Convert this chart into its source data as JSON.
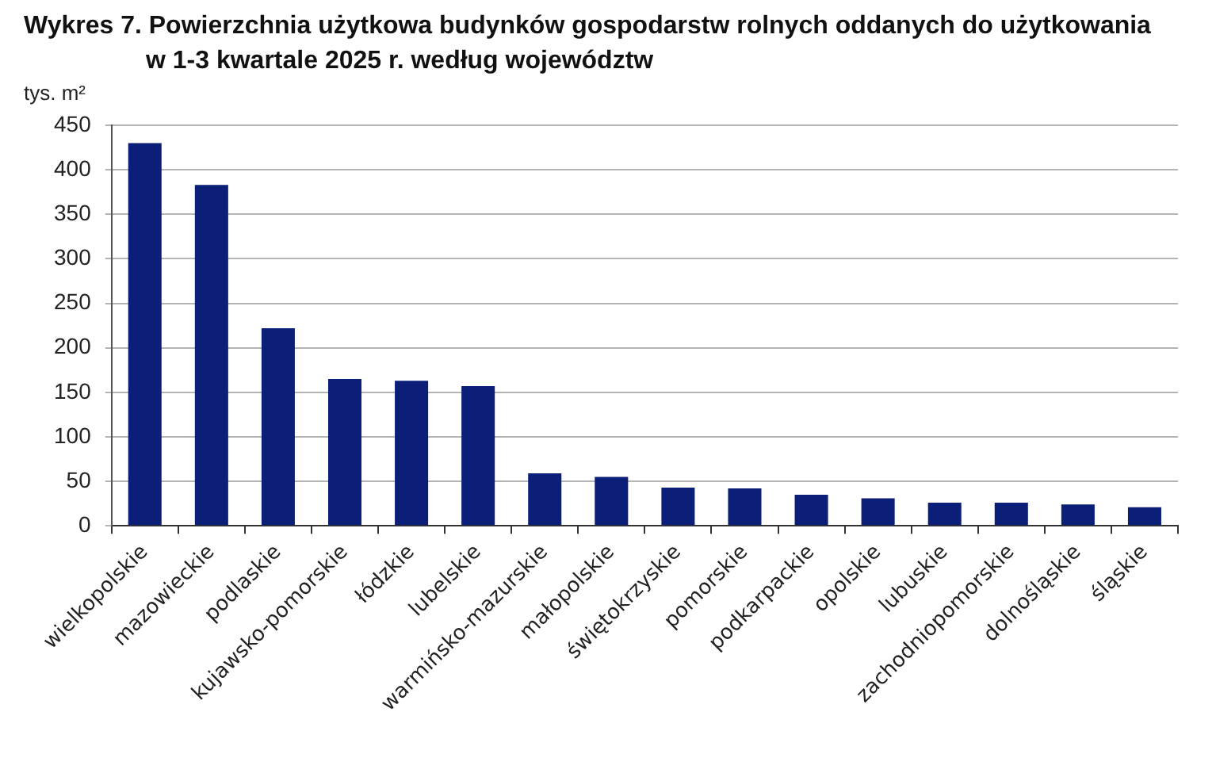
{
  "chart_data": {
    "type": "bar",
    "title": "Wykres 7. Powierzchnia użytkowa budynków gospodarstw rolnych oddanych do użytkowania w 1-3 kwartale 2025 r. według województw",
    "ylabel": "tys. m²",
    "categories": [
      "wielkopolskie",
      "mazowieckie",
      "podlaskie",
      "kujawsko-pomorskie",
      "łódzkie",
      "lubelskie",
      "warmińsko-mazurskie",
      "małopolskie",
      "świętokrzyskie",
      "pomorskie",
      "podkarpackie",
      "opolskie",
      "lubuskie",
      "zachodniopomorskie",
      "dolnośląskie",
      "śląskie"
    ],
    "values": [
      430,
      383,
      222,
      165,
      163,
      157,
      59,
      55,
      43,
      42,
      35,
      31,
      26,
      26,
      24,
      21
    ],
    "color": "#0b1f78",
    "ylim": [
      0,
      450
    ],
    "yticks": [
      0,
      50,
      100,
      150,
      200,
      250,
      300,
      350,
      400,
      450
    ],
    "grid": "y"
  }
}
